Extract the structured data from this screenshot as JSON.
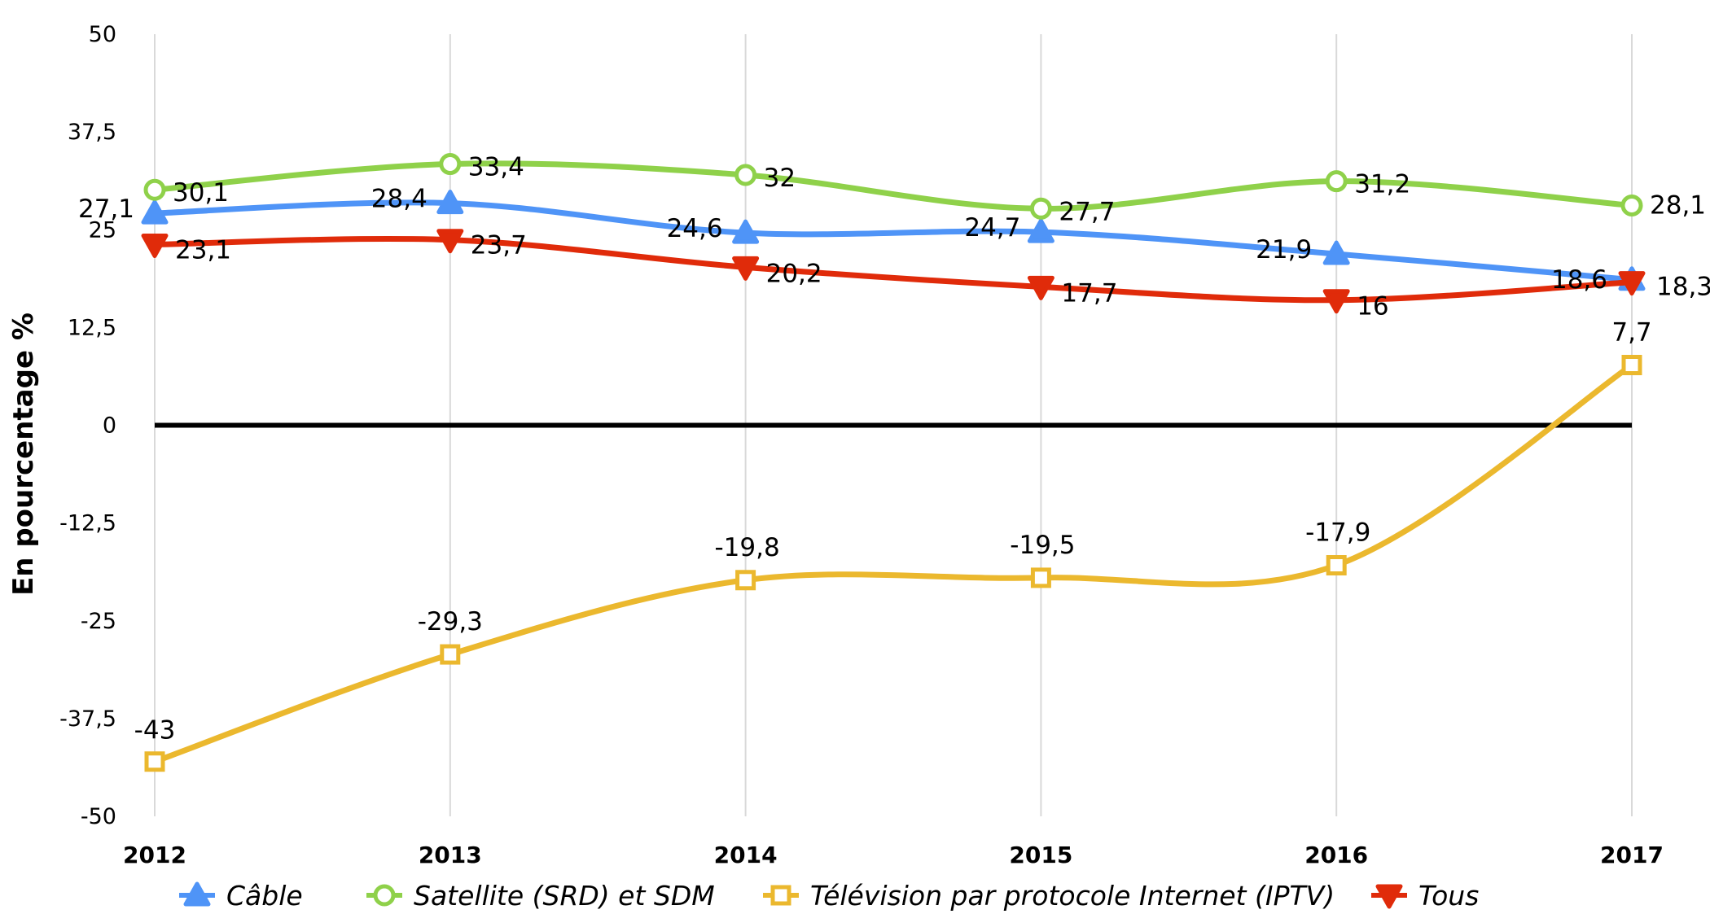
{
  "chart_data": {
    "type": "line",
    "x": [
      "2012",
      "2013",
      "2014",
      "2015",
      "2016",
      "2017"
    ],
    "ylabel": "En pourcentage %",
    "ylim": [
      -50,
      50
    ],
    "yticks": [
      "50",
      "37,5",
      "25",
      "12,5",
      "0",
      "-12,5",
      "-25",
      "-37,5",
      "-50"
    ],
    "ytick_values": [
      50,
      37.5,
      25,
      12.5,
      0,
      -12.5,
      -25,
      -37.5,
      -50
    ],
    "grid": "vertical",
    "legend_position": "bottom",
    "series": [
      {
        "name": "Câble",
        "values": [
          27.1,
          28.4,
          24.6,
          24.7,
          21.9,
          18.6
        ],
        "labels": [
          "27,1",
          "28,4",
          "24,6",
          "24,7",
          "21,9",
          "18,6"
        ],
        "color": "#4f94f7",
        "marker": "triangle-up"
      },
      {
        "name": "Satellite (SRD) et SDM",
        "values": [
          30.1,
          33.4,
          32,
          27.7,
          31.2,
          28.1
        ],
        "labels": [
          "30,1",
          "33,4",
          "32",
          "27,7",
          "31,2",
          "28,1"
        ],
        "color": "#8fd14a",
        "marker": "circle"
      },
      {
        "name": "Télévision par protocole Internet (IPTV)",
        "values": [
          -43,
          -29.3,
          -19.8,
          -19.5,
          -17.9,
          7.7
        ],
        "labels": [
          "-43",
          "-29,3",
          "-19,8",
          "-19,5",
          "-17,9",
          "7,7"
        ],
        "color": "#ebb82e",
        "marker": "square"
      },
      {
        "name": "Tous",
        "values": [
          23.1,
          23.7,
          20.2,
          17.7,
          16,
          18.3
        ],
        "labels": [
          "23,1",
          "23,7",
          "20,2",
          "17,7",
          "16",
          "18,3"
        ],
        "color": "#e02b0a",
        "marker": "triangle-down"
      }
    ]
  }
}
